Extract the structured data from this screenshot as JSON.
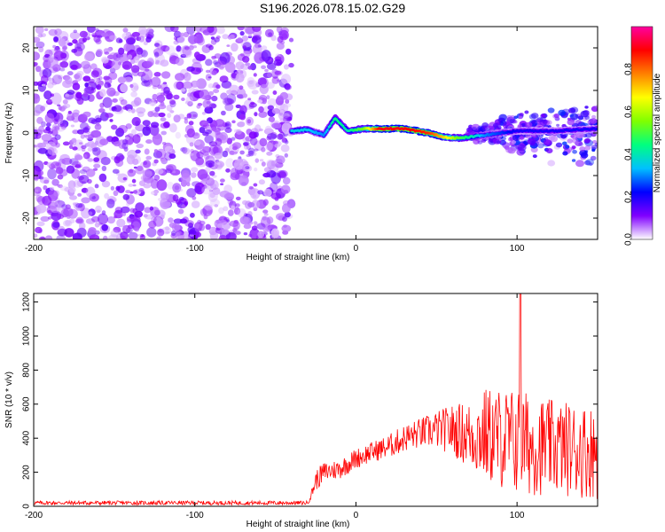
{
  "title": "S196.2026.078.15.02.G29",
  "chart_data": [
    {
      "type": "heatmap",
      "xlabel": "Height of straight line (km)",
      "ylabel": "Frequency (Hz)",
      "xlim": [
        -200,
        150
      ],
      "ylim": [
        -25,
        25
      ],
      "xticks": [
        -200,
        -100,
        0,
        100
      ],
      "yticks": [
        -20,
        -10,
        0,
        10,
        20
      ],
      "colorbar": {
        "label": "Normalized spectral amplitude",
        "range": [
          0.0,
          1.0
        ],
        "ticks": [
          "0.0",
          "0.2",
          "0.4",
          "0.6",
          "0.8"
        ],
        "tick_values": [
          0.0,
          0.2,
          0.4,
          0.6,
          0.8
        ],
        "colors": [
          "#ffffff",
          "#8000ff",
          "#0000ff",
          "#00c0ff",
          "#00ff80",
          "#80ff00",
          "#ffff00",
          "#ff8000",
          "#ff0000",
          "#ff00a0"
        ]
      },
      "noise_region": {
        "x": [
          -200,
          -40
        ],
        "y": [
          -25,
          25
        ],
        "level": 0.12
      },
      "signal_track": [
        {
          "x": -40,
          "f": 0.5,
          "a": 0.35
        },
        {
          "x": -30,
          "f": 0.8,
          "a": 0.35
        },
        {
          "x": -20,
          "f": -0.5,
          "a": 0.3
        },
        {
          "x": -13,
          "f": 3.5,
          "a": 0.45
        },
        {
          "x": -5,
          "f": 0.5,
          "a": 0.4
        },
        {
          "x": 5,
          "f": 1.0,
          "a": 0.55
        },
        {
          "x": 15,
          "f": 1.0,
          "a": 0.9
        },
        {
          "x": 30,
          "f": 1.0,
          "a": 0.9
        },
        {
          "x": 45,
          "f": 0.0,
          "a": 0.85
        },
        {
          "x": 55,
          "f": -1.0,
          "a": 0.7
        },
        {
          "x": 65,
          "f": -1.2,
          "a": 0.5
        },
        {
          "x": 80,
          "f": -0.5,
          "a": 0.3
        },
        {
          "x": 100,
          "f": 0.5,
          "a": 0.2
        },
        {
          "x": 125,
          "f": 0.5,
          "a": 0.2
        },
        {
          "x": 150,
          "f": 1.0,
          "a": 0.2
        }
      ],
      "spread_region": {
        "x": [
          70,
          150
        ],
        "y": [
          -10,
          10
        ],
        "level": 0.15
      }
    },
    {
      "type": "line",
      "xlabel": "Height of straight line (km)",
      "ylabel": "SNR (10 * v/v)",
      "xlim": [
        -200,
        150
      ],
      "ylim": [
        0,
        1250
      ],
      "xticks": [
        -200,
        -100,
        0,
        100
      ],
      "yticks": [
        0,
        200,
        400,
        600,
        800,
        1000,
        1200
      ],
      "color": "#ff0000",
      "envelope": {
        "x": [
          -200,
          -30,
          -28,
          -25,
          -20,
          -10,
          0,
          10,
          20,
          30,
          40,
          50,
          60,
          70,
          80,
          90,
          100,
          110,
          120,
          130,
          140,
          150
        ],
        "mean": [
          20,
          20,
          60,
          150,
          200,
          220,
          280,
          320,
          350,
          400,
          430,
          450,
          450,
          420,
          420,
          400,
          380,
          360,
          350,
          340,
          330,
          320
        ],
        "amplitude": [
          12,
          12,
          20,
          60,
          60,
          60,
          60,
          60,
          70,
          80,
          90,
          110,
          150,
          200,
          280,
          300,
          320,
          300,
          280,
          280,
          280,
          280
        ]
      },
      "peak": {
        "x": 102,
        "y": 1250
      }
    }
  ]
}
